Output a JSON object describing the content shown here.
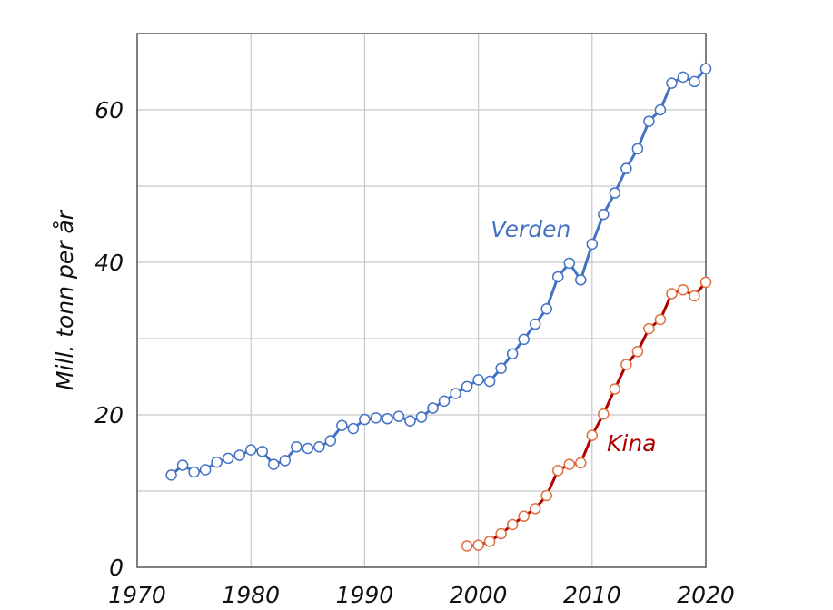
{
  "chart_data": {
    "type": "line",
    "title": "",
    "xlabel": "",
    "ylabel": "Mill. tonn per år",
    "xlim": [
      1970,
      2020
    ],
    "ylim": [
      0,
      70
    ],
    "xticks": [
      1970,
      1980,
      1990,
      2000,
      2010,
      2020
    ],
    "yticks": [
      0,
      20,
      40,
      60
    ],
    "grid": true,
    "legend": "none",
    "series": [
      {
        "name": "Verden",
        "color": "#4472C4",
        "marker_fill": "#ffffff",
        "x": [
          1973,
          1974,
          1975,
          1976,
          1977,
          1978,
          1979,
          1980,
          1981,
          1982,
          1983,
          1984,
          1985,
          1986,
          1987,
          1988,
          1989,
          1990,
          1991,
          1992,
          1993,
          1994,
          1995,
          1996,
          1997,
          1998,
          1999,
          2000,
          2001,
          2002,
          2003,
          2004,
          2005,
          2006,
          2007,
          2008,
          2009,
          2010,
          2011,
          2012,
          2013,
          2014,
          2015,
          2016,
          2017,
          2018,
          2019,
          2020
        ],
        "y": [
          12.1,
          13.4,
          12.5,
          12.8,
          13.8,
          14.3,
          14.7,
          15.4,
          15.2,
          13.5,
          14.0,
          15.8,
          15.6,
          15.8,
          16.6,
          18.6,
          18.2,
          19.4,
          19.6,
          19.5,
          19.8,
          19.2,
          19.7,
          20.9,
          21.8,
          22.8,
          23.7,
          24.6,
          24.4,
          26.1,
          28.0,
          29.9,
          31.9,
          33.9,
          38.1,
          39.9,
          37.7,
          42.4,
          46.3,
          49.1,
          52.3,
          54.9,
          58.5,
          60.0,
          63.5,
          64.3,
          63.7,
          65.4
        ]
      },
      {
        "name": "Kina",
        "color": "#B00000",
        "marker_fill": "#ffffff",
        "marker_stroke": "#E07040",
        "x": [
          1999,
          2000,
          2001,
          2002,
          2003,
          2004,
          2005,
          2006,
          2007,
          2008,
          2009,
          2010,
          2011,
          2012,
          2013,
          2014,
          2015,
          2016,
          2017,
          2018,
          2019,
          2020
        ],
        "y": [
          2.8,
          2.9,
          3.4,
          4.4,
          5.6,
          6.7,
          7.7,
          9.4,
          12.7,
          13.5,
          13.7,
          17.3,
          20.1,
          23.4,
          26.6,
          28.3,
          31.3,
          32.5,
          35.9,
          36.4,
          35.6,
          37.4
        ]
      }
    ]
  }
}
